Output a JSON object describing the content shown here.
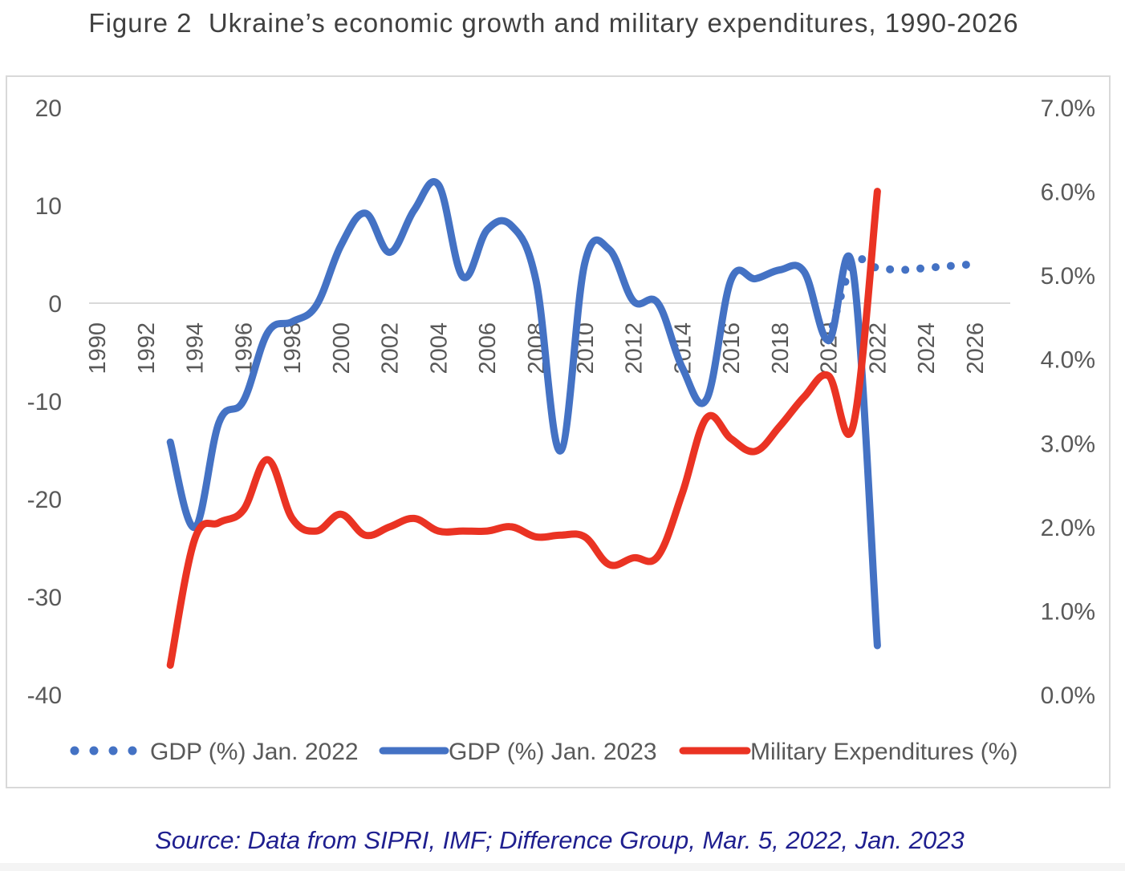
{
  "figure": {
    "title": "Figure 2  Ukraine’s economic growth and military expenditures, 1990-2026",
    "source": "Source:  Data from SIPRI, IMF; Difference Group, Mar. 5, 2022, Jan. 2023"
  },
  "chart_data": {
    "type": "line",
    "title": "",
    "xlabel": "",
    "ylabel": "",
    "x_ticks": [
      1990,
      1992,
      1994,
      1996,
      1998,
      2000,
      2002,
      2004,
      2006,
      2008,
      2010,
      2012,
      2014,
      2016,
      2018,
      2020,
      2022,
      2024,
      2026
    ],
    "x_range": [
      1990,
      2027
    ],
    "y_left": {
      "range": [
        -40,
        20
      ],
      "ticks": [
        20,
        10,
        0,
        -10,
        -20,
        -30,
        -40
      ],
      "tick_labels": [
        "20",
        "10",
        "0",
        "-10",
        "-20",
        "-30",
        "-40"
      ]
    },
    "y_right": {
      "range": [
        0,
        7
      ],
      "ticks": [
        7,
        6,
        5,
        4,
        3,
        2,
        1,
        0
      ],
      "tick_labels": [
        "7.0%",
        "6.0%",
        "5.0%",
        "4.0%",
        "3.0%",
        "2.0%",
        "1.0%",
        "0.0%"
      ]
    },
    "grid": false,
    "legend_position": "bottom",
    "series": [
      {
        "name": "GDP (%) Jan. 2022",
        "axis": "left",
        "style": "dotted",
        "color": "#4472c4",
        "x": [
          2020,
          2021,
          2022,
          2023,
          2024,
          2025,
          2026
        ],
        "y": [
          -3.8,
          4.0,
          3.6,
          3.4,
          3.6,
          3.8,
          4.0
        ]
      },
      {
        "name": "GDP (%) Jan. 2023",
        "axis": "left",
        "style": "solid",
        "color": "#4472c4",
        "x": [
          1993,
          1994,
          1995,
          1996,
          1997,
          1998,
          1999,
          2000,
          2001,
          2002,
          2003,
          2004,
          2005,
          2006,
          2007,
          2008,
          2009,
          2010,
          2011,
          2012,
          2013,
          2014,
          2015,
          2016,
          2017,
          2018,
          2019,
          2020,
          2021,
          2022
        ],
        "y": [
          -14.2,
          -22.9,
          -12.2,
          -10.0,
          -3.0,
          -1.9,
          -0.2,
          5.9,
          9.2,
          5.2,
          9.5,
          12.1,
          2.7,
          7.5,
          7.9,
          2.3,
          -15.1,
          4.1,
          5.5,
          0.2,
          0.0,
          -6.6,
          -9.8,
          2.4,
          2.5,
          3.4,
          3.2,
          -3.8,
          3.4,
          -35.0
        ]
      },
      {
        "name": "Military Expenditures (%)",
        "axis": "right",
        "style": "solid",
        "color": "#ea3323",
        "x": [
          1993,
          1994,
          1995,
          1996,
          1997,
          1998,
          1999,
          2000,
          2001,
          2002,
          2003,
          2004,
          2005,
          2006,
          2007,
          2008,
          2009,
          2010,
          2011,
          2012,
          2013,
          2014,
          2015,
          2016,
          2017,
          2018,
          2019,
          2020,
          2021,
          2022
        ],
        "y": [
          0.35,
          1.85,
          2.05,
          2.2,
          2.8,
          2.1,
          1.95,
          2.15,
          1.9,
          2.0,
          2.1,
          1.95,
          1.95,
          1.95,
          2.0,
          1.88,
          1.9,
          1.88,
          1.55,
          1.63,
          1.65,
          2.4,
          3.3,
          3.05,
          2.9,
          3.2,
          3.55,
          3.8,
          3.2,
          6.0
        ]
      }
    ]
  }
}
